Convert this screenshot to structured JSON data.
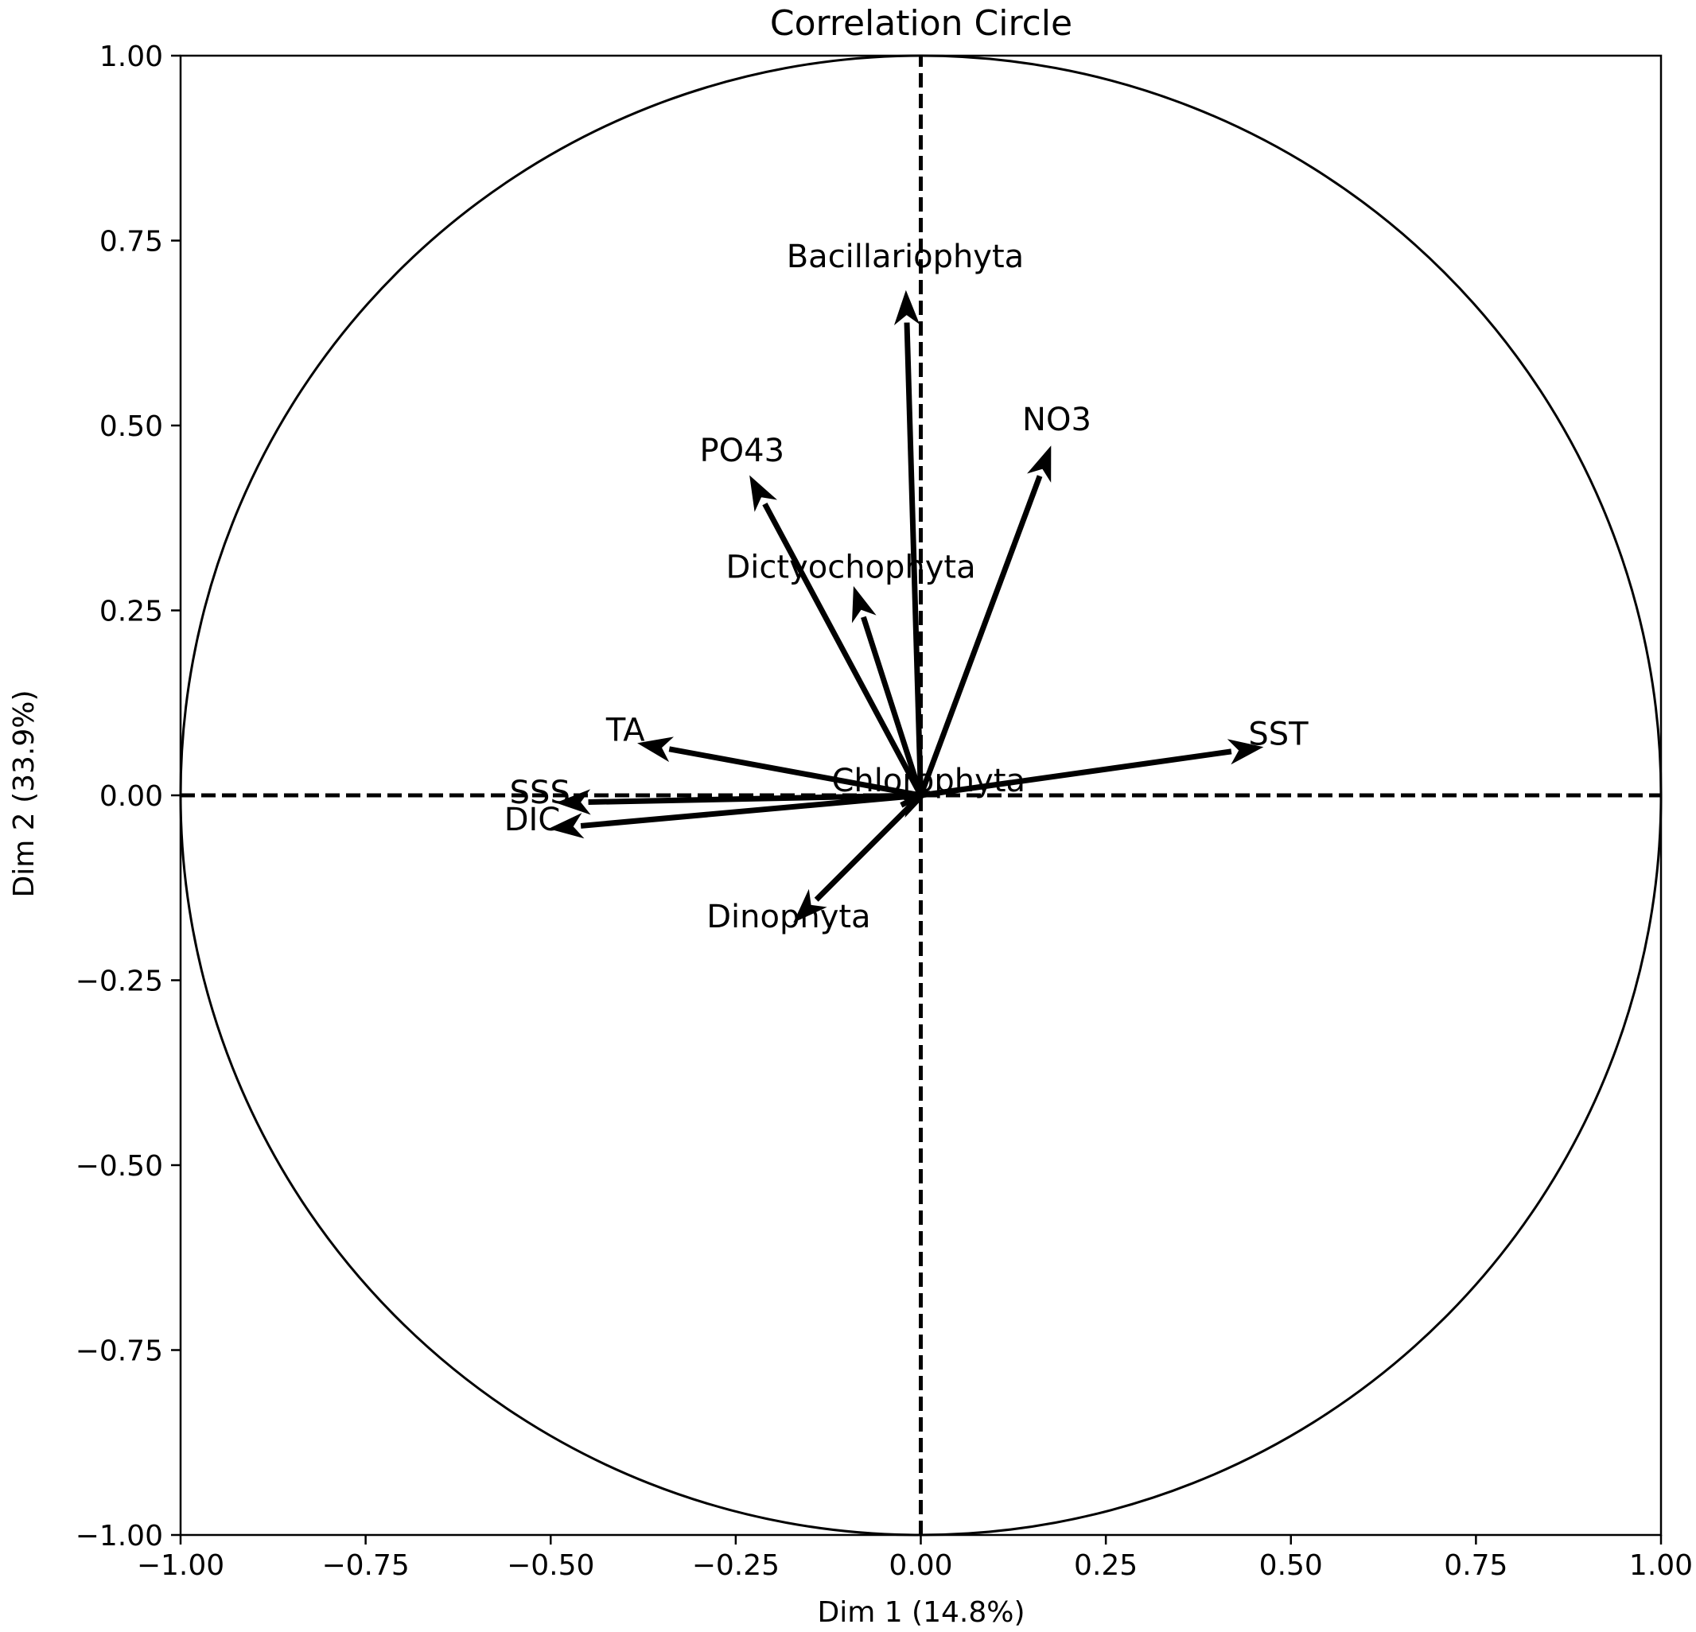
{
  "chart_data": {
    "type": "correlation_circle",
    "title": "Correlation Circle",
    "xlabel": "Dim 1 (14.8%)",
    "ylabel": "Dim 2 (33.9%)",
    "xlim": [
      -1.0,
      1.0
    ],
    "ylim": [
      -1.0,
      1.0
    ],
    "xticks": [
      "−1.00",
      "−0.75",
      "−0.50",
      "−0.25",
      "0.00",
      "0.25",
      "0.50",
      "0.75",
      "1.00"
    ],
    "yticks": [
      "−1.00",
      "−0.75",
      "−0.50",
      "−0.25",
      "0.00",
      "0.25",
      "0.50",
      "0.75",
      "1.00"
    ],
    "xtick_values": [
      -1.0,
      -0.75,
      -0.5,
      -0.25,
      0.0,
      0.25,
      0.5,
      0.75,
      1.0
    ],
    "ytick_values": [
      -1.0,
      -0.75,
      -0.5,
      -0.25,
      0.0,
      0.25,
      0.5,
      0.75,
      1.0
    ],
    "grid": false,
    "unit_circle": true,
    "reference_lines": "dashed at x=0 and y=0",
    "vectors": [
      {
        "name": "Bacillariophyta",
        "x": -0.02,
        "y": 0.68
      },
      {
        "name": "NO3",
        "x": 0.175,
        "y": 0.47
      },
      {
        "name": "PO43",
        "x": -0.23,
        "y": 0.43
      },
      {
        "name": "Dictyochophyta",
        "x": -0.09,
        "y": 0.28
      },
      {
        "name": "TA",
        "x": -0.38,
        "y": 0.07
      },
      {
        "name": "Chlorophyta",
        "x": 0.01,
        "y": 0.005
      },
      {
        "name": "SST",
        "x": 0.46,
        "y": 0.065
      },
      {
        "name": "SSS",
        "x": -0.49,
        "y": -0.01
      },
      {
        "name": "DIC",
        "x": -0.5,
        "y": -0.045
      },
      {
        "name": "Dinophyta",
        "x": -0.17,
        "y": -0.17
      }
    ]
  }
}
